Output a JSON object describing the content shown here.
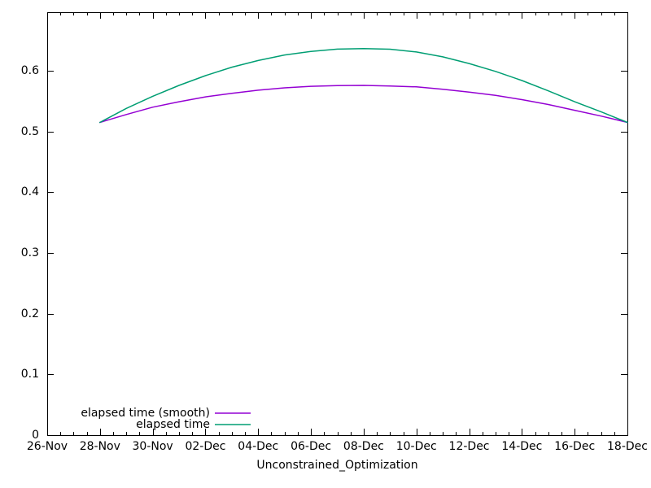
{
  "chart_data": {
    "type": "line",
    "title": "",
    "xlabel": "Unconstrained_Optimization",
    "ylabel": "",
    "grid": false,
    "background": "#ffffff",
    "axis_color": "#000000",
    "legend_position": "bottom-left-inside",
    "x_tick_labels": [
      "26-Nov",
      "28-Nov",
      "30-Nov",
      "02-Dec",
      "04-Dec",
      "06-Dec",
      "08-Dec",
      "10-Dec",
      "12-Dec",
      "14-Dec",
      "16-Dec",
      "18-Dec"
    ],
    "x_major_days": [
      0,
      2,
      4,
      6,
      8,
      10,
      12,
      14,
      16,
      18,
      20,
      22
    ],
    "x_minor_step_days": 0.5,
    "x_range_days": [
      0,
      22
    ],
    "y_ticks": [
      "0",
      "0.1",
      "0.2",
      "0.3",
      "0.4",
      "0.5",
      "0.6"
    ],
    "y_tick_values": [
      0,
      0.1,
      0.2,
      0.3,
      0.4,
      0.5,
      0.6
    ],
    "ylim": [
      0,
      0.6965
    ],
    "series": [
      {
        "name": "elapsed time (smooth)",
        "color": "#9400d3",
        "x_days": [
          2,
          3,
          4,
          5,
          6,
          7,
          8,
          9,
          10,
          11,
          12,
          13,
          14,
          15,
          16,
          17,
          18,
          19,
          20,
          21,
          22
        ],
        "values": [
          0.515,
          0.528,
          0.54,
          0.549,
          0.557,
          0.563,
          0.568,
          0.572,
          0.5745,
          0.5757,
          0.576,
          0.575,
          0.5735,
          0.5695,
          0.565,
          0.5595,
          0.5525,
          0.5445,
          0.535,
          0.5255,
          0.515
        ]
      },
      {
        "name": "elapsed time",
        "color": "#009e73",
        "x_days": [
          2,
          3,
          4,
          5,
          6,
          7,
          8,
          9,
          10,
          11,
          12,
          13,
          14,
          15,
          16,
          17,
          18,
          19,
          20,
          21,
          22
        ],
        "values": [
          0.515,
          0.538,
          0.558,
          0.576,
          0.592,
          0.606,
          0.617,
          0.626,
          0.632,
          0.6357,
          0.6365,
          0.6355,
          0.631,
          0.623,
          0.612,
          0.599,
          0.584,
          0.567,
          0.549,
          0.5325,
          0.515
        ]
      }
    ]
  }
}
